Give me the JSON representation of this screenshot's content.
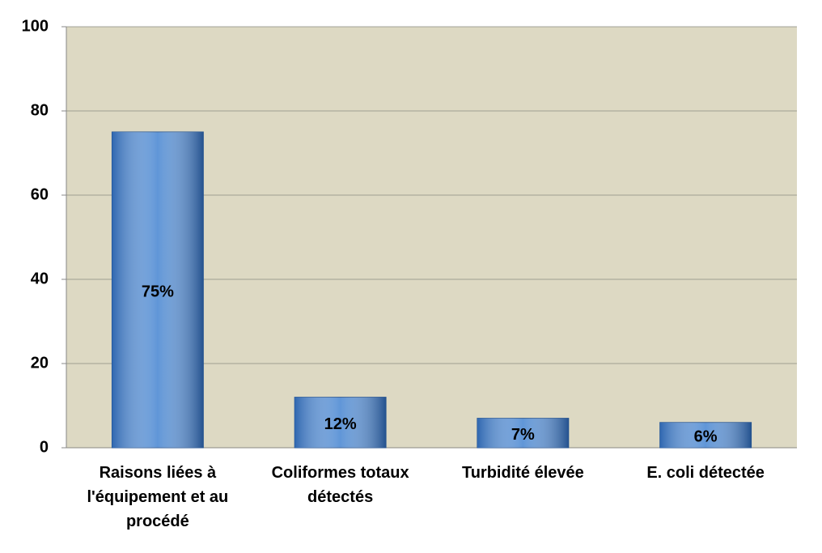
{
  "chart_data": {
    "type": "bar",
    "categories": [
      "Raisons liées à l'équipement et au procédé",
      "Coliformes totaux détectés",
      "Turbidité élevée",
      "E. coli détectée"
    ],
    "values": [
      75,
      12,
      7,
      6
    ],
    "value_labels": [
      "75%",
      "12%",
      "7%",
      "6%"
    ],
    "color": "#3d7fcf",
    "ylim": [
      0,
      100
    ],
    "yticks": [
      0,
      20,
      40,
      60,
      80,
      100
    ],
    "grid": true
  }
}
